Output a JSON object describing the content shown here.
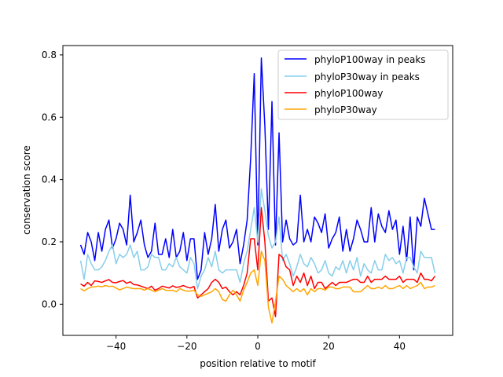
{
  "chart_data": {
    "type": "line",
    "title": "",
    "xlabel": "position relative to motif",
    "ylabel": "conservation score",
    "xlim": [
      -55,
      55
    ],
    "ylim": [
      -0.1,
      0.83
    ],
    "xticks": [
      -40,
      -20,
      0,
      20,
      40
    ],
    "yticks": [
      0.0,
      0.2,
      0.4,
      0.6,
      0.8
    ],
    "xtick_labels": [
      "−40",
      "−20",
      "0",
      "20",
      "40"
    ],
    "ytick_labels": [
      "0.0",
      "0.2",
      "0.4",
      "0.6",
      "0.8"
    ],
    "grid": false,
    "legend_position": "top-right",
    "x": [
      -50,
      -49,
      -48,
      -47,
      -46,
      -45,
      -44,
      -43,
      -42,
      -41,
      -40,
      -39,
      -38,
      -37,
      -36,
      -35,
      -34,
      -33,
      -32,
      -31,
      -30,
      -29,
      -28,
      -27,
      -26,
      -25,
      -24,
      -23,
      -22,
      -21,
      -20,
      -19,
      -18,
      -17,
      -16,
      -15,
      -14,
      -13,
      -12,
      -11,
      -10,
      -9,
      -8,
      -7,
      -6,
      -5,
      -4,
      -3,
      -2,
      -1,
      0,
      1,
      2,
      3,
      4,
      5,
      6,
      7,
      8,
      9,
      10,
      11,
      12,
      13,
      14,
      15,
      16,
      17,
      18,
      19,
      20,
      21,
      22,
      23,
      24,
      25,
      26,
      27,
      28,
      29,
      30,
      31,
      32,
      33,
      34,
      35,
      36,
      37,
      38,
      39,
      40,
      41,
      42,
      43,
      44,
      45,
      46,
      47,
      48,
      49,
      50
    ],
    "series": [
      {
        "name": "phyloP100way in peaks",
        "color": "#0000ff",
        "values": [
          0.19,
          0.16,
          0.23,
          0.2,
          0.14,
          0.23,
          0.17,
          0.24,
          0.27,
          0.18,
          0.21,
          0.26,
          0.24,
          0.19,
          0.35,
          0.2,
          0.23,
          0.27,
          0.19,
          0.15,
          0.17,
          0.26,
          0.16,
          0.16,
          0.21,
          0.15,
          0.24,
          0.15,
          0.17,
          0.23,
          0.14,
          0.21,
          0.21,
          0.08,
          0.11,
          0.23,
          0.16,
          0.21,
          0.32,
          0.17,
          0.24,
          0.27,
          0.18,
          0.2,
          0.24,
          0.13,
          0.19,
          0.27,
          0.47,
          0.74,
          0.19,
          0.79,
          0.57,
          0.24,
          0.65,
          0.19,
          0.55,
          0.2,
          0.27,
          0.21,
          0.19,
          0.2,
          0.35,
          0.2,
          0.24,
          0.2,
          0.28,
          0.26,
          0.23,
          0.29,
          0.18,
          0.21,
          0.23,
          0.28,
          0.17,
          0.24,
          0.17,
          0.21,
          0.27,
          0.24,
          0.2,
          0.2,
          0.31,
          0.2,
          0.29,
          0.25,
          0.23,
          0.3,
          0.24,
          0.27,
          0.16,
          0.25,
          0.14,
          0.28,
          0.11,
          0.28,
          0.25,
          0.34,
          0.29,
          0.24,
          0.24
        ]
      },
      {
        "name": "phyloP30way in peaks",
        "color": "#87ceeb",
        "values": [
          0.14,
          0.08,
          0.16,
          0.13,
          0.11,
          0.11,
          0.12,
          0.14,
          0.17,
          0.19,
          0.13,
          0.16,
          0.15,
          0.16,
          0.19,
          0.15,
          0.17,
          0.11,
          0.11,
          0.12,
          0.16,
          0.15,
          0.15,
          0.11,
          0.11,
          0.13,
          0.12,
          0.15,
          0.12,
          0.11,
          0.1,
          0.15,
          0.13,
          0.05,
          0.09,
          0.11,
          0.15,
          0.12,
          0.17,
          0.11,
          0.1,
          0.11,
          0.11,
          0.11,
          0.11,
          0.07,
          0.13,
          0.17,
          0.24,
          0.31,
          0.2,
          0.37,
          0.3,
          0.22,
          0.18,
          0.2,
          0.28,
          0.14,
          0.16,
          0.13,
          0.09,
          0.12,
          0.16,
          0.13,
          0.12,
          0.15,
          0.13,
          0.1,
          0.11,
          0.14,
          0.1,
          0.09,
          0.12,
          0.11,
          0.14,
          0.1,
          0.14,
          0.11,
          0.15,
          0.09,
          0.13,
          0.11,
          0.1,
          0.14,
          0.11,
          0.11,
          0.16,
          0.14,
          0.15,
          0.13,
          0.14,
          0.1,
          0.15,
          0.15,
          0.12,
          0.1,
          0.17,
          0.15,
          0.15,
          0.15,
          0.1
        ]
      },
      {
        "name": "phyloP100way",
        "color": "#ff0000",
        "values": [
          0.065,
          0.058,
          0.07,
          0.06,
          0.075,
          0.073,
          0.07,
          0.075,
          0.079,
          0.07,
          0.069,
          0.073,
          0.076,
          0.067,
          0.072,
          0.063,
          0.062,
          0.058,
          0.054,
          0.05,
          0.058,
          0.045,
          0.05,
          0.058,
          0.055,
          0.052,
          0.059,
          0.054,
          0.056,
          0.06,
          0.055,
          0.052,
          0.057,
          0.02,
          0.03,
          0.04,
          0.05,
          0.07,
          0.08,
          0.07,
          0.05,
          0.055,
          0.04,
          0.03,
          0.04,
          0.03,
          0.06,
          0.1,
          0.21,
          0.21,
          0.11,
          0.31,
          0.2,
          0.01,
          0.02,
          -0.04,
          0.16,
          0.15,
          0.12,
          0.11,
          0.06,
          0.09,
          0.07,
          0.1,
          0.06,
          0.09,
          0.05,
          0.07,
          0.07,
          0.05,
          0.06,
          0.07,
          0.06,
          0.07,
          0.07,
          0.07,
          0.075,
          0.08,
          0.08,
          0.07,
          0.07,
          0.09,
          0.07,
          0.08,
          0.08,
          0.08,
          0.09,
          0.08,
          0.08,
          0.08,
          0.09,
          0.07,
          0.08,
          0.08,
          0.08,
          0.07,
          0.1,
          0.08,
          0.08,
          0.075,
          0.09
        ]
      },
      {
        "name": "phyloP30way",
        "color": "#ffa500",
        "values": [
          0.05,
          0.043,
          0.05,
          0.055,
          0.056,
          0.058,
          0.056,
          0.06,
          0.057,
          0.058,
          0.052,
          0.046,
          0.05,
          0.055,
          0.052,
          0.05,
          0.05,
          0.05,
          0.045,
          0.05,
          0.045,
          0.04,
          0.045,
          0.05,
          0.045,
          0.044,
          0.045,
          0.04,
          0.05,
          0.045,
          0.042,
          0.042,
          0.045,
          0.03,
          0.025,
          0.03,
          0.035,
          0.04,
          0.05,
          0.04,
          0.015,
          0.01,
          0.03,
          0.045,
          0.03,
          0.01,
          0.045,
          0.07,
          0.1,
          0.11,
          0.06,
          0.17,
          0.14,
          -0.01,
          -0.06,
          0.01,
          0.09,
          0.08,
          0.06,
          0.05,
          0.04,
          0.05,
          0.04,
          0.05,
          0.03,
          0.05,
          0.04,
          0.05,
          0.05,
          0.045,
          0.055,
          0.055,
          0.05,
          0.05,
          0.055,
          0.055,
          0.055,
          0.04,
          0.04,
          0.04,
          0.05,
          0.06,
          0.05,
          0.05,
          0.055,
          0.05,
          0.06,
          0.05,
          0.05,
          0.055,
          0.06,
          0.05,
          0.06,
          0.05,
          0.055,
          0.06,
          0.07,
          0.05,
          0.055,
          0.055,
          0.06
        ]
      }
    ]
  }
}
